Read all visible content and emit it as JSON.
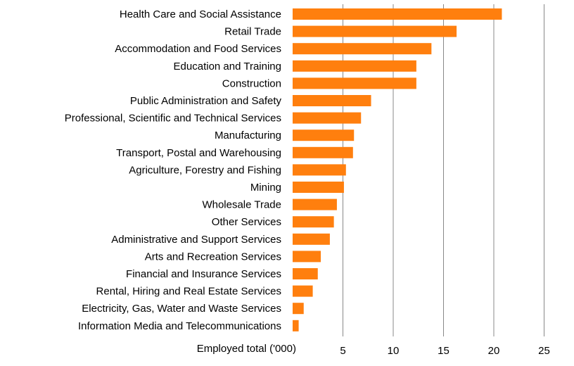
{
  "chart_data": {
    "type": "bar",
    "orientation": "horizontal",
    "categories": [
      "Health Care and Social Assistance",
      "Retail Trade",
      "Accommodation and Food Services",
      "Education and Training",
      "Construction",
      "Public Administration and Safety",
      "Professional, Scientific and Technical Services",
      "Manufacturing",
      "Transport, Postal and Warehousing",
      "Agriculture, Forestry and Fishing",
      "Mining",
      "Wholesale Trade",
      "Other Services",
      "Administrative and Support Services",
      "Arts and Recreation Services",
      "Financial and Insurance Services",
      "Rental, Hiring and Real Estate Services",
      "Electricity, Gas, Water and Waste Services",
      "Information Media and Telecommunications"
    ],
    "values": [
      20.8,
      16.3,
      13.8,
      12.3,
      12.3,
      7.8,
      6.8,
      6.1,
      6.0,
      5.3,
      5.1,
      4.4,
      4.1,
      3.7,
      2.8,
      2.5,
      2.0,
      1.1,
      0.6
    ],
    "xlabel": "Employed total ('000)",
    "xlim": [
      0,
      25
    ],
    "xticks": [
      "5",
      "10",
      "15",
      "20",
      "25"
    ],
    "grid": true,
    "bar_color": "#ff7f0e",
    "grid_color": "#888888"
  }
}
